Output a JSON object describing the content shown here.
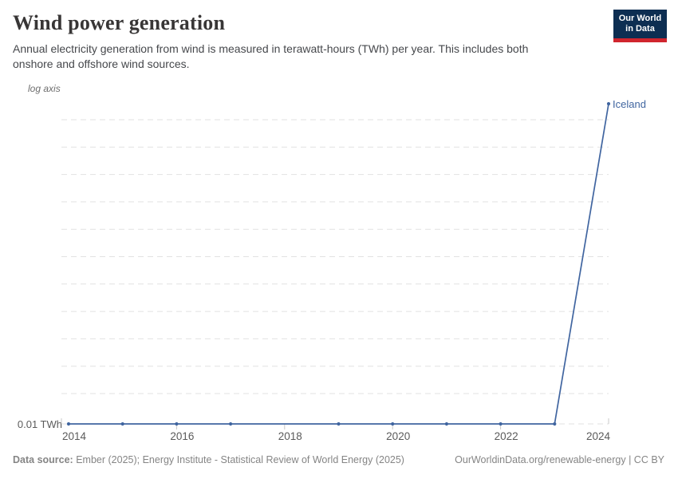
{
  "header": {
    "title": "Wind power generation",
    "subtitle_line1": "Annual electricity generation from wind is measured in terawatt-hours (TWh) per year. This includes both",
    "subtitle_line2": "onshore and offshore wind sources.",
    "logo": {
      "line1": "Our World",
      "line2": "in Data"
    }
  },
  "chart_data": {
    "type": "line",
    "title": "Wind power generation",
    "xlabel": "",
    "ylabel": "",
    "log_axis_note": "log axis",
    "x_axis": {
      "range": [
        2014,
        2024
      ],
      "tick_years": [
        2014,
        2016,
        2018,
        2020,
        2022,
        2024
      ]
    },
    "y_axis": {
      "scale": "log",
      "min_label": "0.01 TWh",
      "ylim": [
        0.01,
        10
      ],
      "unlabeled_gridlines": 11,
      "grid": "dashed"
    },
    "series": [
      {
        "name": "Iceland",
        "color": "#4065a0",
        "x": [
          2014,
          2015,
          2016,
          2017,
          2018,
          2019,
          2020,
          2021,
          2022,
          2023,
          2024
        ],
        "values": [
          0.01,
          0.01,
          0.01,
          0.01,
          0.01,
          0.01,
          0.01,
          0.01,
          0.01,
          0.01,
          10
        ],
        "marker_years": [
          2014,
          2015,
          2016,
          2017,
          2019,
          2020,
          2021,
          2022,
          2023,
          2024
        ]
      }
    ],
    "legend_position": "end-of-line-label"
  },
  "footer": {
    "data_source_label": "Data source:",
    "data_source_text": " Ember (2025); Energy Institute - Statistical Review of World Energy (2025)",
    "link_text": "OurWorldinData.org/renewable-energy | CC BY"
  },
  "colors": {
    "line": "#4065a0",
    "gridline": "#e2e2e2",
    "tick": "#c9c9c9",
    "axis_text": "#5b5b5b",
    "logo_bg": "#0d2e52",
    "logo_accent": "#d0252e"
  }
}
